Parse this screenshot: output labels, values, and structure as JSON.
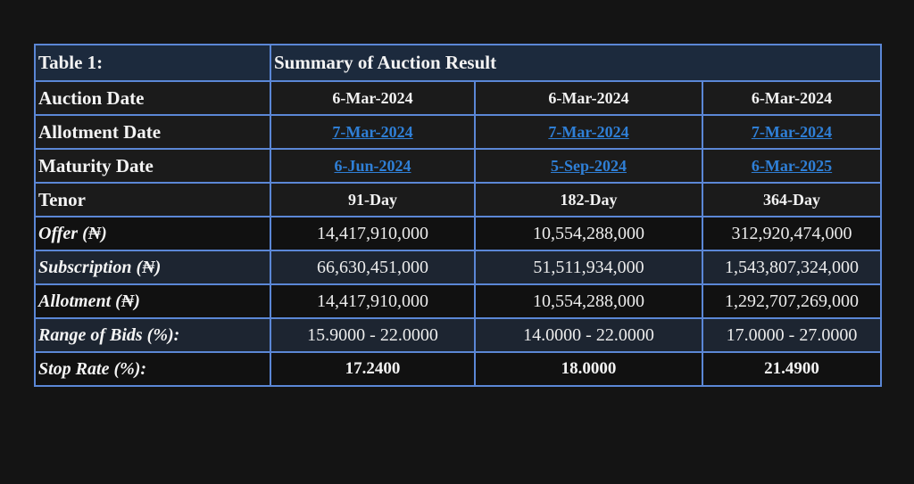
{
  "table": {
    "caption_label": "Table 1:",
    "title": "Summary of Auction Result",
    "colors": {
      "border": "#5b87d6",
      "title_bg": "#1c2a3d",
      "link": "#2f7fd6",
      "page_bg": "#141414"
    },
    "rows": {
      "auction_date": {
        "label": "Auction Date",
        "values": [
          "6-Mar-2024",
          "6-Mar-2024",
          "6-Mar-2024"
        ]
      },
      "allotment_date": {
        "label": "Allotment Date",
        "values": [
          "7-Mar-2024",
          "7-Mar-2024",
          "7-Mar-2024"
        ]
      },
      "maturity_date": {
        "label": "Maturity Date",
        "values": [
          "6-Jun-2024",
          "5-Sep-2024",
          "6-Mar-2025"
        ]
      },
      "tenor": {
        "label": "Tenor",
        "values": [
          "91-Day",
          "182-Day",
          "364-Day"
        ]
      },
      "offer": {
        "label": "Offer (₦)",
        "values": [
          "14,417,910,000",
          "10,554,288,000",
          "312,920,474,000"
        ]
      },
      "subscription": {
        "label": "Subscription (₦)",
        "values": [
          "66,630,451,000",
          "51,511,934,000",
          "1,543,807,324,000"
        ]
      },
      "allotment": {
        "label": "Allotment (₦)",
        "values": [
          "14,417,910,000",
          "10,554,288,000",
          "1,292,707,269,000"
        ]
      },
      "range_of_bids": {
        "label": "Range of Bids (%):",
        "values": [
          "15.9000 - 22.0000",
          "14.0000 - 22.0000",
          "17.0000 - 27.0000"
        ]
      },
      "stop_rate": {
        "label": "Stop Rate (%):",
        "values": [
          "17.2400",
          "18.0000",
          "21.4900"
        ]
      }
    }
  }
}
